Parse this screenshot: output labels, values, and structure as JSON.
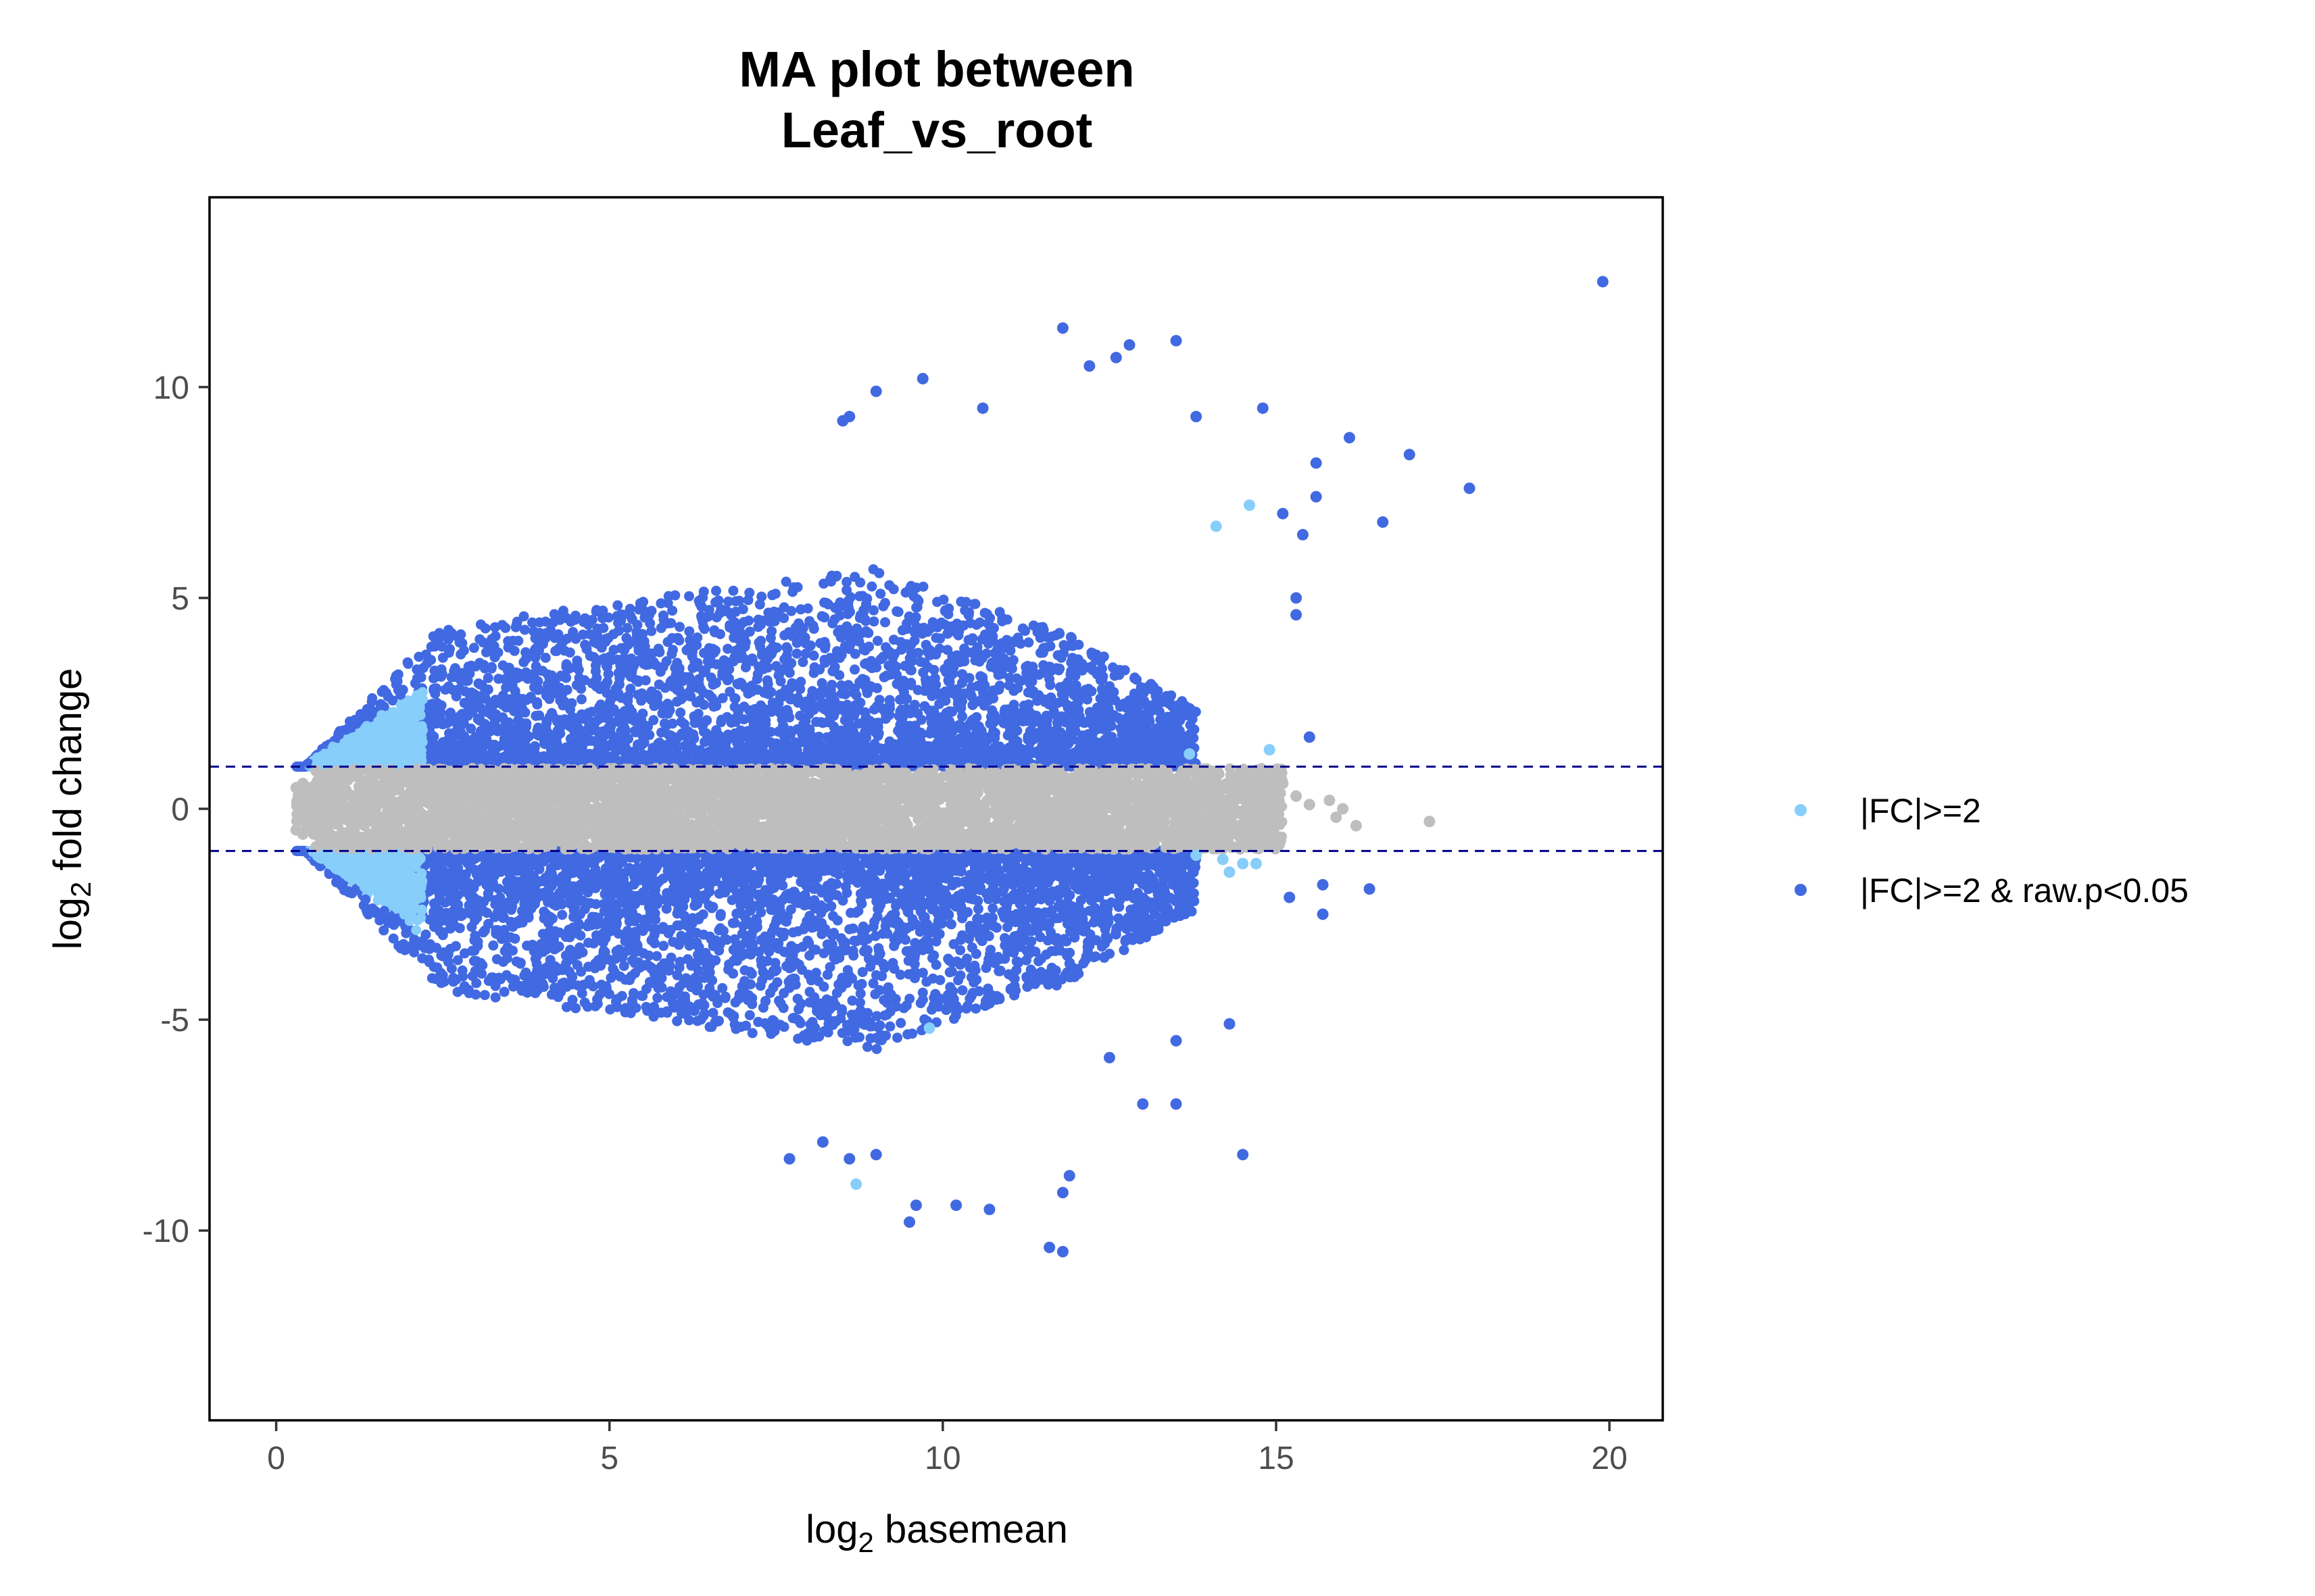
{
  "chart_data": {
    "type": "scatter",
    "title": [
      "MA plot between",
      "Leaf_vs_root"
    ],
    "xlabel": {
      "prefix": "log",
      "sub": "2",
      "suffix": " basemean"
    },
    "ylabel": {
      "prefix": "log",
      "sub": "2",
      "suffix": " fold change"
    },
    "xlim": [
      -1,
      20.8
    ],
    "ylim": [
      -14.5,
      14.5
    ],
    "x_ticks": [
      0,
      5,
      10,
      15,
      20
    ],
    "y_ticks": [
      -10,
      -5,
      0,
      5,
      10
    ],
    "x_tick_labels": [
      "0",
      "5",
      "10",
      "15",
      "20"
    ],
    "y_tick_labels": [
      "-10",
      "-5",
      "0",
      "5",
      "10"
    ],
    "threshold_lines": [
      1,
      -1
    ],
    "grid": false,
    "legend_position": "right",
    "series": [
      {
        "name": "|FC|>=2",
        "color": "#87CEFA",
        "points": [
          [
            0.8,
            1.1
          ],
          [
            1.0,
            1.3
          ],
          [
            1.2,
            1.5
          ],
          [
            1.4,
            1.8
          ],
          [
            1.6,
            2.0
          ],
          [
            1.8,
            2.2
          ],
          [
            0.8,
            -1.1
          ],
          [
            1.0,
            -1.3
          ],
          [
            1.2,
            -1.5
          ],
          [
            1.4,
            -1.8
          ],
          [
            1.6,
            -2.0
          ],
          [
            1.8,
            -2.2
          ],
          [
            14.1,
            6.7
          ],
          [
            14.6,
            7.2
          ],
          [
            8.7,
            -8.9
          ],
          [
            9.8,
            -5.2
          ],
          [
            13.7,
            1.3
          ],
          [
            14.2,
            -1.2
          ],
          [
            14.5,
            -1.3
          ],
          [
            14.7,
            -1.3
          ],
          [
            13.8,
            -1.1
          ],
          [
            14.3,
            -1.5
          ],
          [
            14.9,
            1.4
          ]
        ]
      },
      {
        "name": "|FC|>=2 & raw.p<0.05",
        "color": "#4169E1",
        "points": [
          [
            19.9,
            12.5
          ],
          [
            17.9,
            7.6
          ],
          [
            17.0,
            8.4
          ],
          [
            16.6,
            6.8
          ],
          [
            16.1,
            8.8
          ],
          [
            15.6,
            8.2
          ],
          [
            15.6,
            7.4
          ],
          [
            14.8,
            9.5
          ],
          [
            15.1,
            7.0
          ],
          [
            15.4,
            6.5
          ],
          [
            15.3,
            5.0
          ],
          [
            15.3,
            4.6
          ],
          [
            15.5,
            1.7
          ],
          [
            11.8,
            11.4
          ],
          [
            12.2,
            10.5
          ],
          [
            12.6,
            10.7
          ],
          [
            12.8,
            11.0
          ],
          [
            13.5,
            11.1
          ],
          [
            13.8,
            9.3
          ],
          [
            9.7,
            10.2
          ],
          [
            9.0,
            9.9
          ],
          [
            10.6,
            9.5
          ],
          [
            8.5,
            9.2
          ],
          [
            8.6,
            9.3
          ],
          [
            16.4,
            -1.9
          ],
          [
            15.7,
            -1.8
          ],
          [
            15.7,
            -2.5
          ],
          [
            15.2,
            -2.1
          ],
          [
            14.5,
            -8.2
          ],
          [
            14.3,
            -5.1
          ],
          [
            11.8,
            -10.5
          ],
          [
            11.6,
            -10.4
          ],
          [
            9.5,
            -9.8
          ],
          [
            9.6,
            -9.4
          ],
          [
            10.2,
            -9.4
          ],
          [
            10.7,
            -9.5
          ],
          [
            11.9,
            -8.7
          ],
          [
            11.8,
            -9.1
          ],
          [
            13.0,
            -7.0
          ],
          [
            13.5,
            -7.0
          ],
          [
            12.5,
            -5.9
          ],
          [
            13.5,
            -5.5
          ],
          [
            7.7,
            -8.3
          ],
          [
            8.2,
            -7.9
          ],
          [
            8.6,
            -8.3
          ],
          [
            9.0,
            -8.2
          ]
        ]
      },
      {
        "name": "",
        "color": "#BEBEBE",
        "points": [
          [
            0.3,
            0.5
          ],
          [
            0.3,
            -0.5
          ],
          [
            0.4,
            0.6
          ],
          [
            0.4,
            -0.6
          ],
          [
            0.6,
            0.9
          ],
          [
            0.6,
            -0.9
          ],
          [
            15.3,
            0.3
          ],
          [
            15.5,
            0.1
          ],
          [
            15.8,
            0.2
          ],
          [
            15.9,
            -0.2
          ],
          [
            16.0,
            0.0
          ],
          [
            16.2,
            -0.4
          ],
          [
            17.3,
            -0.3
          ],
          [
            15.1,
            0.6
          ],
          [
            14.8,
            -0.6
          ],
          [
            14.6,
            0.5
          ]
        ]
      }
    ]
  }
}
